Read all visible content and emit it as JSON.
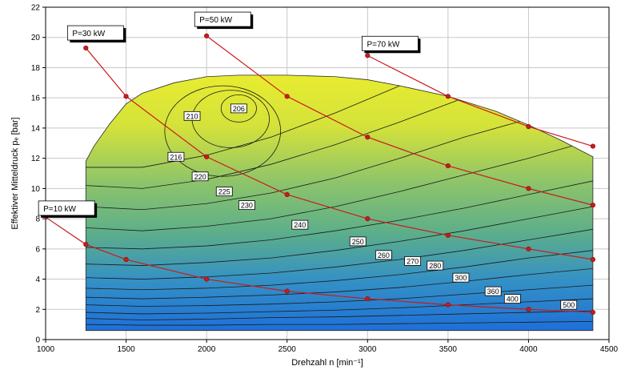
{
  "chart_data": {
    "type": "contour",
    "xlabel": "Drehzahl n [min⁻¹]",
    "ylabel": "Effektiver Mitteldruck pₑ [bar]",
    "xlim": [
      1000,
      4500
    ],
    "ylim": [
      0,
      22
    ],
    "x_ticks": [
      1000,
      1500,
      2000,
      2500,
      3000,
      3500,
      4000,
      4500
    ],
    "y_ticks": [
      0,
      2,
      4,
      6,
      8,
      10,
      12,
      14,
      16,
      18,
      20,
      22
    ],
    "grid": true,
    "full_load_curve": {
      "x": [
        1250,
        1300,
        1400,
        1500,
        1600,
        1800,
        2000,
        2200,
        2500,
        2800,
        3000,
        3200,
        3500,
        3800,
        4000,
        4200,
        4400
      ],
      "y": [
        11.8,
        12.8,
        14.3,
        15.6,
        16.3,
        17.0,
        17.4,
        17.5,
        17.5,
        17.4,
        17.2,
        16.8,
        16.1,
        15.1,
        14.2,
        13.2,
        12.1
      ]
    },
    "lower_boundary": 0.6,
    "contour_labels": [
      {
        "text": "206",
        "x": 2200,
        "y": 15.3
      },
      {
        "text": "210",
        "x": 1910,
        "y": 14.8
      },
      {
        "text": "216",
        "x": 1810,
        "y": 12.1
      },
      {
        "text": "220",
        "x": 1960,
        "y": 10.8
      },
      {
        "text": "225",
        "x": 2110,
        "y": 9.8
      },
      {
        "text": "230",
        "x": 2250,
        "y": 8.9
      },
      {
        "text": "240",
        "x": 2580,
        "y": 7.6
      },
      {
        "text": "250",
        "x": 2940,
        "y": 6.5
      },
      {
        "text": "260",
        "x": 3100,
        "y": 5.6
      },
      {
        "text": "270",
        "x": 3280,
        "y": 5.2
      },
      {
        "text": "280",
        "x": 3420,
        "y": 4.9
      },
      {
        "text": "300",
        "x": 3580,
        "y": 4.1
      },
      {
        "text": "360",
        "x": 3780,
        "y": 3.2
      },
      {
        "text": "400",
        "x": 3900,
        "y": 2.7
      },
      {
        "text": "500",
        "x": 4250,
        "y": 2.3
      }
    ],
    "series": [
      {
        "name": "P=10 kW",
        "x": [
          1000,
          1250,
          1500,
          2000,
          2500,
          3000,
          3500,
          4000,
          4400
        ],
        "y": [
          8.1,
          6.3,
          5.3,
          4.0,
          3.2,
          2.7,
          2.3,
          2.0,
          1.8
        ]
      },
      {
        "name": "P=30 kW",
        "x": [
          1250,
          1500,
          2000,
          2500,
          3000,
          3500,
          4000,
          4400
        ],
        "y": [
          19.3,
          16.1,
          12.1,
          9.6,
          8.0,
          6.9,
          6.0,
          5.3
        ]
      },
      {
        "name": "P=50 kW",
        "x": [
          2000,
          2500,
          3000,
          3500,
          4000,
          4400
        ],
        "y": [
          20.1,
          16.1,
          13.4,
          11.5,
          10.0,
          8.9
        ]
      },
      {
        "name": "P=70 kW",
        "x": [
          3000,
          3500,
          4000,
          4400
        ],
        "y": [
          18.8,
          16.1,
          14.1,
          12.8
        ]
      }
    ],
    "series_labels": [
      {
        "name": "P=10 kW",
        "x": 1130,
        "y": 8.7
      },
      {
        "name": "P=30 kW",
        "x": 1310,
        "y": 20.3
      },
      {
        "name": "P=50 kW",
        "x": 2100,
        "y": 21.2
      },
      {
        "name": "P=70 kW",
        "x": 3140,
        "y": 19.6
      }
    ],
    "colors": {
      "series": "#cc1a1a",
      "grid": "#c8c8c8",
      "contour_line": "#1a1a1a",
      "top_fill": "#e8ec30",
      "mid_fill": "#8dc46a",
      "bottom_fill": "#1e70d8"
    }
  }
}
